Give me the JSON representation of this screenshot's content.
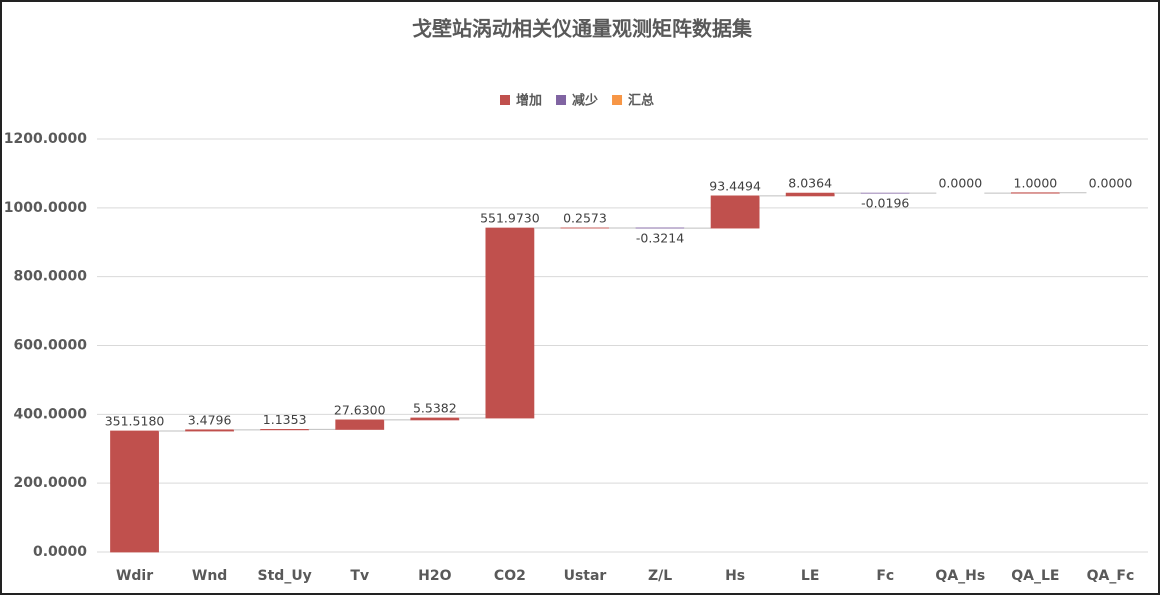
{
  "chart_data": {
    "type": "waterfall",
    "title": "戈壁站涡动相关仪通量观测矩阵数据集",
    "legend": [
      {
        "name": "增加",
        "color": "#c0504d"
      },
      {
        "name": "减少",
        "color": "#8064a2"
      },
      {
        "name": "汇总",
        "color": "#f79646"
      }
    ],
    "categories": [
      "Wdir",
      "Wnd",
      "Std_Uy",
      "Tv",
      "H2O",
      "CO2",
      "Ustar",
      "Z/L",
      "Hs",
      "LE",
      "Fc",
      "QA_Hs",
      "QA_LE",
      "QA_Fc"
    ],
    "values": [
      351.518,
      3.4796,
      1.1353,
      27.63,
      5.5382,
      551.973,
      0.2573,
      -0.3214,
      93.4494,
      8.0364,
      -0.0196,
      0,
      1,
      0
    ],
    "value_labels": [
      "351.5180",
      "3.4796",
      "1.1353",
      "27.6300",
      "5.5382",
      "551.9730",
      "0.2573",
      "-0.3214",
      "93.4494",
      "8.0364",
      "-0.0196",
      "0.0000",
      "1.0000",
      "0.0000"
    ],
    "ylim": [
      0,
      1200
    ],
    "yticks": [
      {
        "value": 0,
        "label": "0.0000"
      },
      {
        "value": 200,
        "label": "200.0000"
      },
      {
        "value": 400,
        "label": "400.0000"
      },
      {
        "value": 600,
        "label": "600.0000"
      },
      {
        "value": 800,
        "label": "800.0000"
      },
      {
        "value": 1000,
        "label": "1000.0000"
      },
      {
        "value": 1200,
        "label": "1200.0000"
      }
    ],
    "grid": true
  }
}
